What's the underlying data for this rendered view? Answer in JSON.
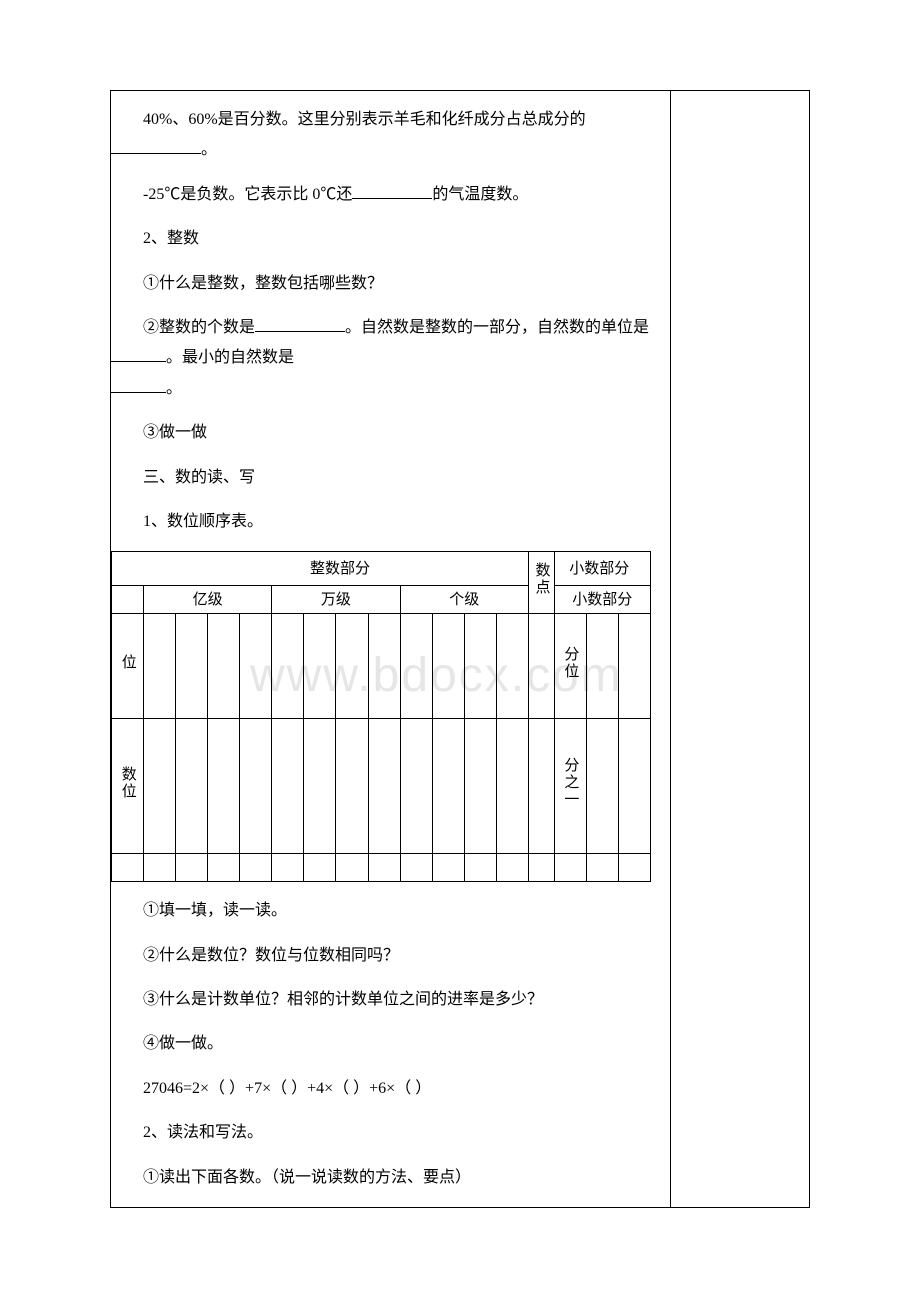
{
  "watermark": "www.bdocx.com",
  "p1_a": "40%、60%是百分数。这里分别表示羊毛和化纤成分占总成分的",
  "p1_b": "。",
  "p2_a": "-25℃是负数。它表示比 0℃还",
  "p2_b": "的气温度数。",
  "p3": "2、整数",
  "p4": "①什么是整数，整数包括哪些数？",
  "p5_a": "②整数的个数是",
  "p5_b": "。自然数是整数的一部分，自然数的单位是",
  "p5_c": "。最小的自然数是",
  "p5_d": "。",
  "p6": "③做一做",
  "p7": "三、数的读、写",
  "p8": "1、数位顺序表。",
  "tbl": {
    "integer_part": "整数部分",
    "decimal_point": "数点",
    "decimal_part": "小数部分",
    "yi_level": "亿级",
    "wan_level": "万级",
    "ge_level": "个级",
    "pos_row_label": "位",
    "pos_cell_fenwei": "分位",
    "unit_row_label": "数位",
    "unit_cell_fenzhi": "分之一"
  },
  "p9": "①填一填，读一读。",
  "p10": "②什么是数位？数位与位数相同吗？",
  "p11": "③什么是计数单位？相邻的计数单位之间的进率是多少？",
  "p12": "④做一做。",
  "p13": "27046=2×（ ）+7×（ ）+4×（ ）+6×（ ）",
  "p14": "2、读法和写法。",
  "p15": "①读出下面各数。（说一说读数的方法、要点）"
}
